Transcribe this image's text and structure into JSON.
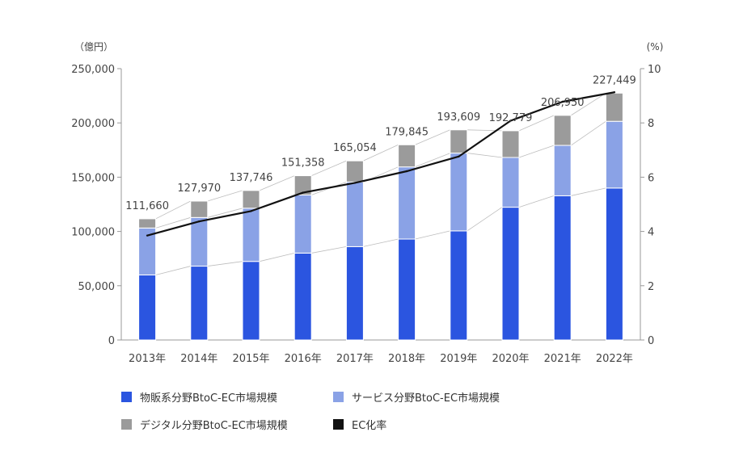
{
  "chart_data": {
    "type": "bar",
    "stacked": true,
    "categories": [
      "2013年",
      "2014年",
      "2015年",
      "2016年",
      "2017年",
      "2018年",
      "2019年",
      "2020年",
      "2021年",
      "2022年"
    ],
    "series": [
      {
        "name": "物販系分野BtoC-EC市場規模",
        "type": "bar",
        "axis": "left",
        "color": "#2b55e0",
        "values": [
          59931,
          68042,
          72398,
          80043,
          86008,
          92992,
          100515,
          122333,
          132865,
          139997
        ]
      },
      {
        "name": "サービス分野BtoC-EC市場規模",
        "type": "bar",
        "axis": "left",
        "color": "#8aa2e6",
        "values": [
          43224,
          44816,
          49014,
          53532,
          59568,
          66471,
          71672,
          45832,
          46424,
          61477
        ]
      },
      {
        "name": "デジタル分野BtoC-EC市場規模",
        "type": "bar",
        "axis": "left",
        "color": "#9b9b9b",
        "values": [
          8505,
          15112,
          16334,
          17783,
          19478,
          20382,
          21422,
          24614,
          27661,
          25974
        ]
      },
      {
        "name": "EC化率",
        "type": "line",
        "axis": "right",
        "color": "#111111",
        "values": [
          3.85,
          4.37,
          4.75,
          5.43,
          5.79,
          6.22,
          6.76,
          8.08,
          8.78,
          9.13
        ]
      }
    ],
    "totals": [
      "111,660",
      "127,970",
      "137,746",
      "151,358",
      "165,054",
      "179,845",
      "193,609",
      "192,779",
      "206,950",
      "227,449"
    ],
    "y_left": {
      "unit_label": "（億円）",
      "ylim": [
        0,
        250000
      ],
      "ticks": [
        "0",
        "50,000",
        "100,000",
        "150,000",
        "200,000",
        "250,000"
      ]
    },
    "y_right": {
      "unit_label": "(%)",
      "ylim": [
        0,
        10
      ],
      "ticks": [
        "0",
        "2",
        "4",
        "6",
        "8",
        "10"
      ]
    },
    "grid": false,
    "legend_position": "bottom"
  }
}
